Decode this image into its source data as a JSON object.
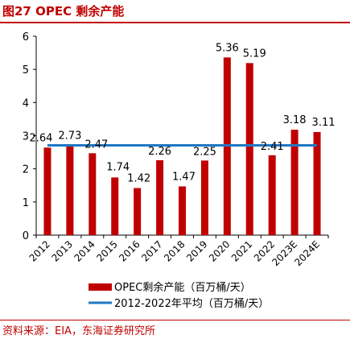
{
  "header": {
    "title": "图27 OPEC 剩余产能"
  },
  "footer": {
    "source": "资料来源：EIA，东海证券研究所"
  },
  "colors": {
    "bar": "#c00000",
    "avg_line": "#1f77c4",
    "title": "#c00000"
  },
  "chart_data": {
    "type": "bar",
    "categories": [
      "2012",
      "2013",
      "2014",
      "2015",
      "2016",
      "2017",
      "2018",
      "2019",
      "2020",
      "2021",
      "2022",
      "2023E",
      "2024E"
    ],
    "series": [
      {
        "name": "OPEC剩余产能（百万桶/天）",
        "type": "bar",
        "values": [
          2.64,
          2.73,
          2.47,
          1.74,
          1.42,
          2.26,
          1.47,
          2.25,
          5.36,
          5.19,
          2.41,
          3.18,
          3.11
        ]
      },
      {
        "name": "2012-2022年平均（百万桶/天）",
        "type": "line",
        "values": [
          2.71,
          2.71,
          2.71,
          2.71,
          2.71,
          2.71,
          2.71,
          2.71,
          2.71,
          2.71,
          2.71,
          2.71,
          2.71
        ]
      }
    ],
    "data_labels": [
      "2.64",
      "2.73",
      "2.47",
      "1.74",
      "1.42",
      "2.26",
      "1.47",
      "2.25",
      "5.36",
      "5.19",
      "2.41",
      "3.18",
      "3.11"
    ],
    "ylim": [
      0,
      6
    ],
    "yticks": [
      "0",
      "1",
      "2",
      "3",
      "4",
      "5",
      "6"
    ],
    "legend_position": "bottom",
    "grid": false,
    "xlabel": "",
    "ylabel": ""
  }
}
